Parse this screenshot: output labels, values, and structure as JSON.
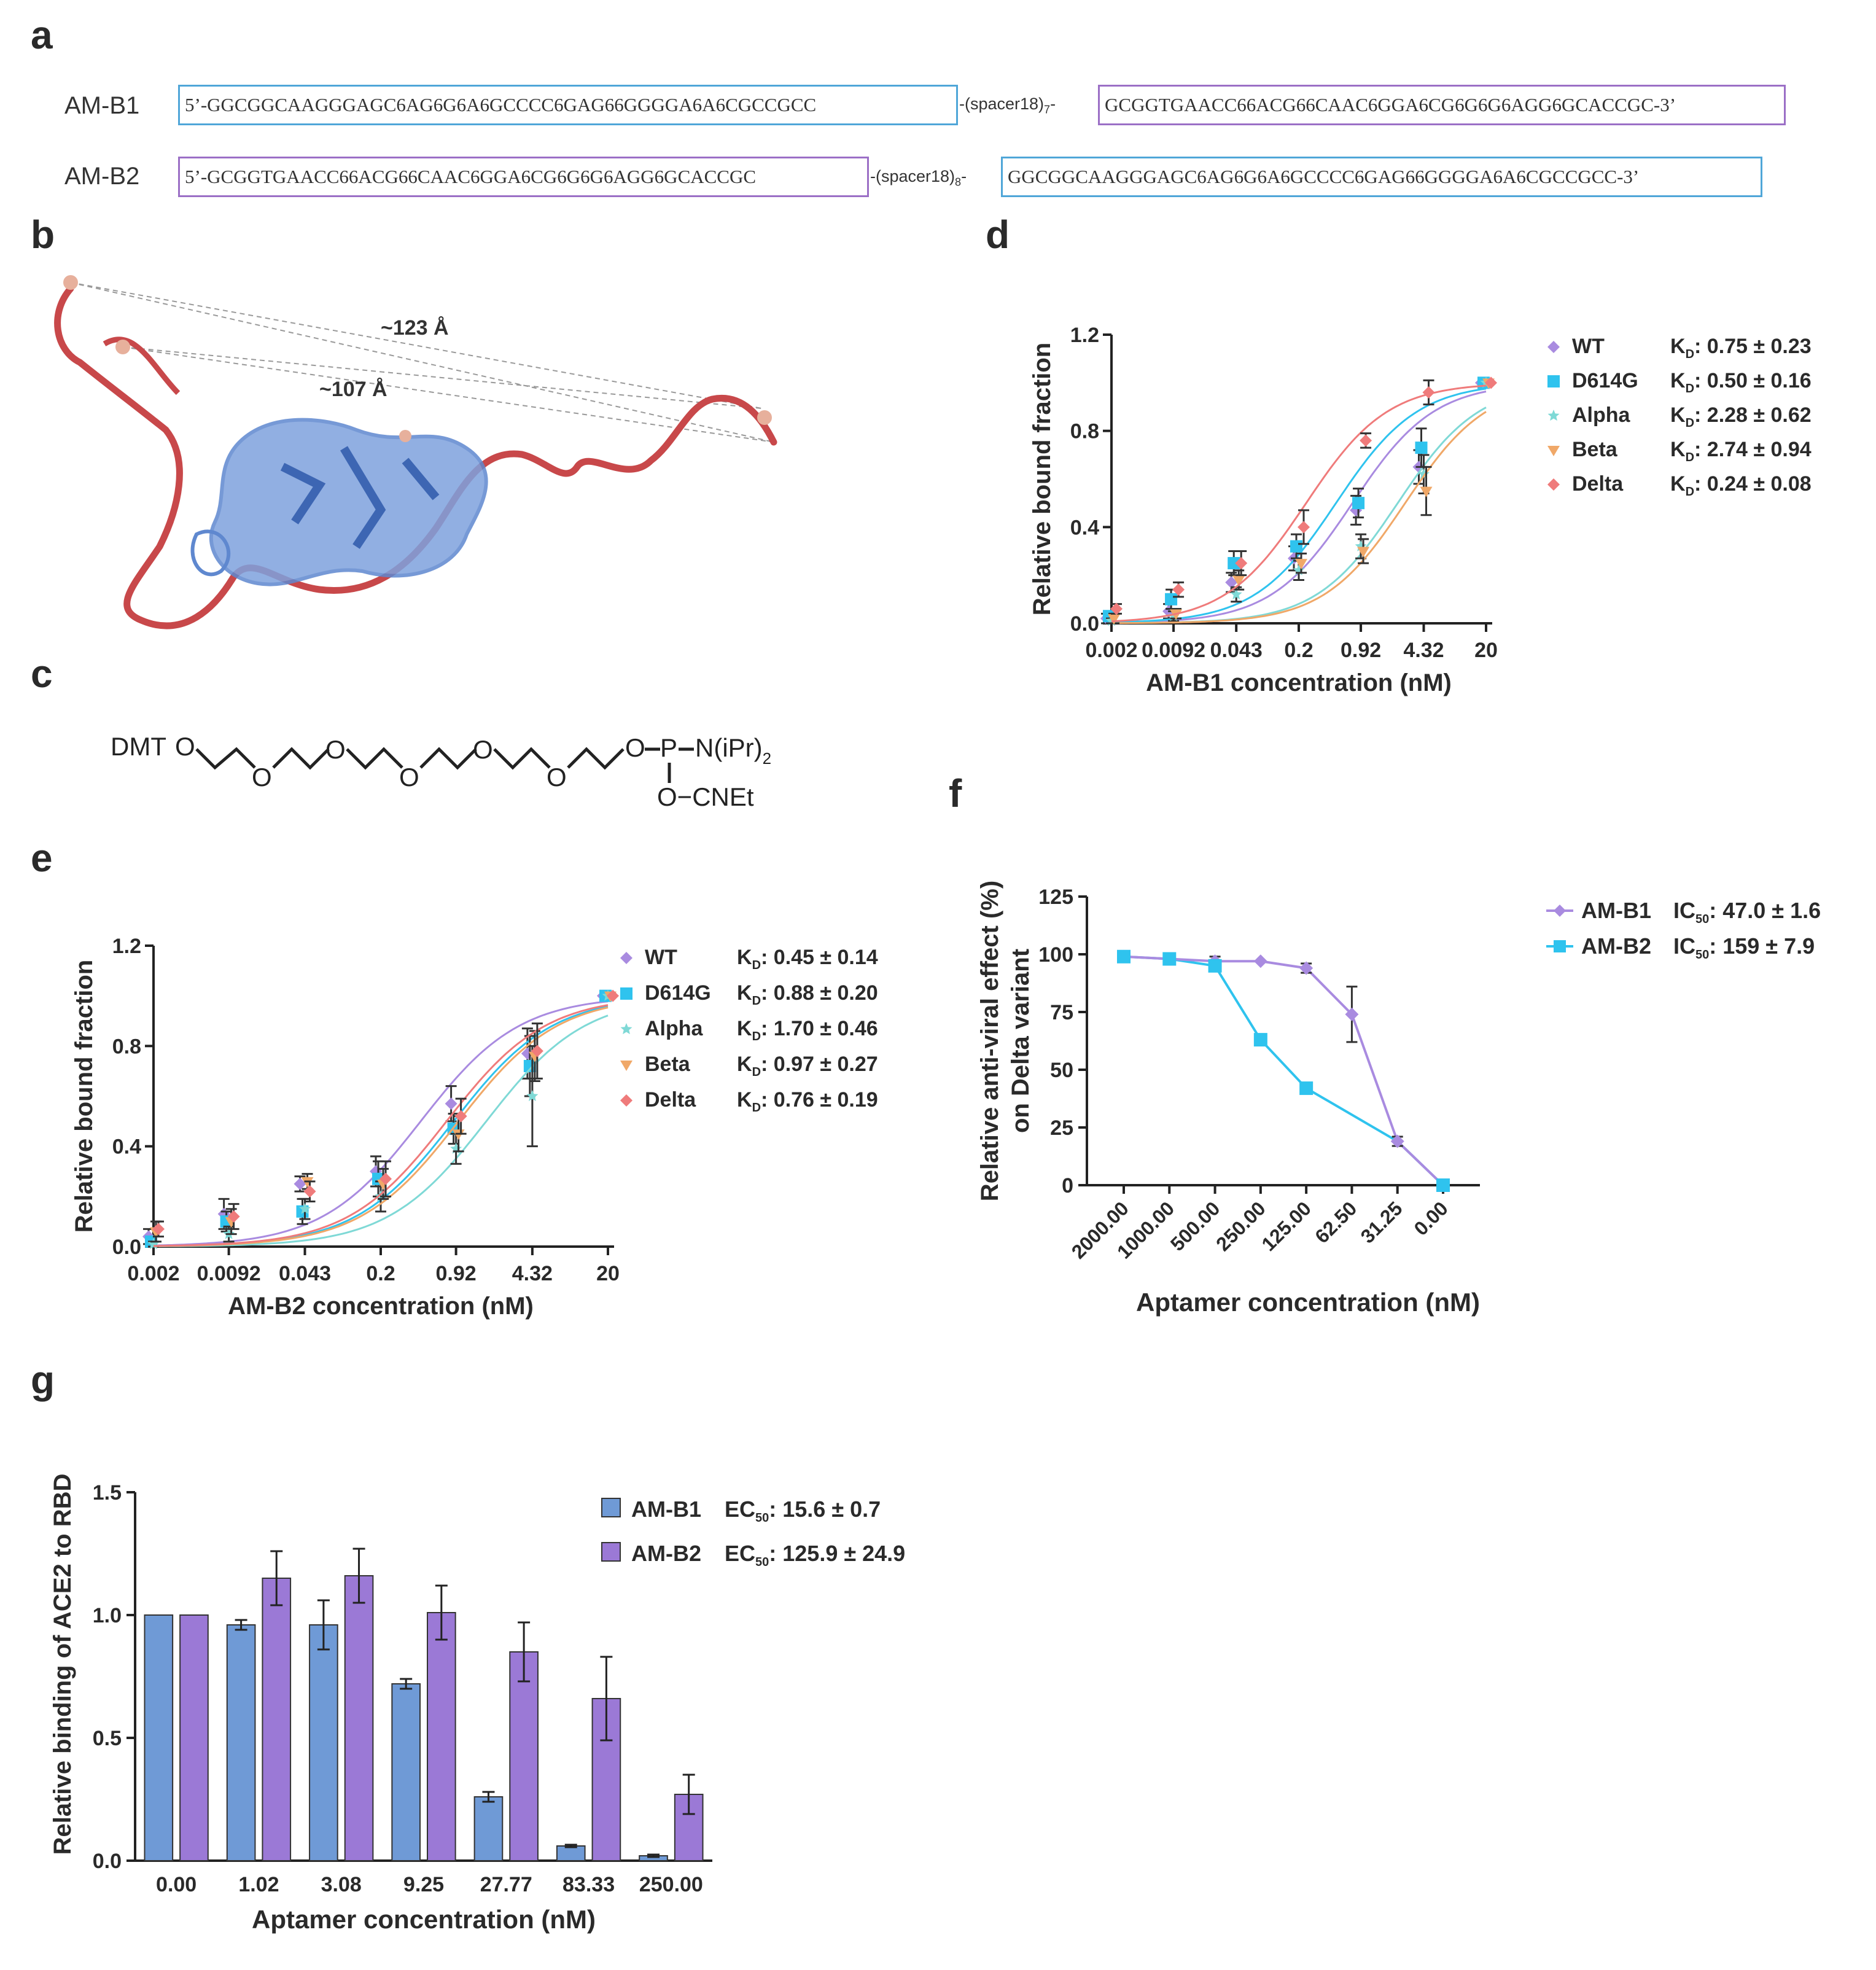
{
  "panels": {
    "a": "a",
    "b": "b",
    "c": "c",
    "d": "d",
    "e": "e",
    "f": "f",
    "g": "g"
  },
  "colors": {
    "wt": "#a98be0",
    "d614g": "#2fc3ee",
    "alpha": "#7fd9d6",
    "beta": "#f0a868",
    "delta": "#ef7b7b",
    "ambr1": "#6f9ad6",
    "ambr2": "#9b79d6",
    "box_blue": "#4fa6d8",
    "box_purple": "#9b6fc6",
    "ribbon_red": "#c8484a",
    "ribbon_blue": "#5f88cf"
  },
  "panel_a": {
    "rows": [
      {
        "name": "AM-B1",
        "seq1": "5’-GGCGGCAAGGGAGC6AG6G6A6GCCCC6GAG66GGGGA6A6CGCCGCC",
        "spacer": "-(spacer18)",
        "spacer_sub": "7",
        "seq2": "GCGGTGAACC66ACG66CAAC6GGA6CG6G6G6AGG6GCACCGC-3’"
      },
      {
        "name": "AM-B2",
        "seq1": "5’-GCGGTGAACC66ACG66CAAC6GGA6CG6G6G6AGG6GCACCGC",
        "spacer": "-(spacer18)",
        "spacer_sub": "8",
        "seq2": "GGCGGCAAGGGAGC6AG6G6A6GCCCC6GAG66GGGGA6A6CGCCGCC-3’"
      }
    ]
  },
  "panel_b": {
    "dist1": "~123 Å",
    "dist2": "~107 Å"
  },
  "panel_c": {
    "dmt": "DMT",
    "o": "O",
    "p": "P",
    "nipr": "N(iPr)",
    "sub2": "2",
    "cnet": "O−CNEt"
  },
  "panel_d": {
    "chart_data": {
      "type": "scatter",
      "xlabel": "AM-B1 concentration (nM)",
      "ylabel": "Relative bound fraction",
      "x_tick_labels": [
        "0.002",
        "0.0092",
        "0.043",
        "0.2",
        "0.92",
        "4.32",
        "20"
      ],
      "x": [
        0.002,
        0.0092,
        0.043,
        0.2,
        0.92,
        4.32,
        20
      ],
      "ylim": [
        0,
        1.2
      ],
      "y_ticks": [
        "0.0",
        "0.4",
        "0.8",
        "1.2"
      ],
      "series": [
        {
          "name": "WT",
          "kd_label": "K",
          "kd_sub": "D",
          "kd_value": ": 0.75 ± 0.23",
          "kd": 0.75,
          "values": [
            0.02,
            0.05,
            0.17,
            0.27,
            0.47,
            0.65,
            1.0
          ],
          "errors": [
            0.02,
            0.03,
            0.04,
            0.05,
            0.06,
            0.07,
            0
          ]
        },
        {
          "name": "D614G",
          "kd_label": "K",
          "kd_sub": "D",
          "kd_value": ": 0.50 ± 0.16",
          "kd": 0.5,
          "values": [
            0.03,
            0.1,
            0.25,
            0.32,
            0.5,
            0.73,
            1.0
          ],
          "errors": [
            0.02,
            0.04,
            0.05,
            0.05,
            0.06,
            0.08,
            0
          ]
        },
        {
          "name": "Alpha",
          "kd_label": "K",
          "kd_sub": "D",
          "kd_value": ": 2.28 ± 0.62",
          "kd": 2.28,
          "values": [
            0.01,
            0.03,
            0.12,
            0.22,
            0.32,
            0.62,
            1.0
          ],
          "errors": [
            0.01,
            0.02,
            0.03,
            0.04,
            0.05,
            0.08,
            0
          ]
        },
        {
          "name": "Beta",
          "kd_label": "K",
          "kd_sub": "D",
          "kd_value": ": 2.74 ± 0.94",
          "kd": 2.74,
          "values": [
            0.02,
            0.04,
            0.18,
            0.25,
            0.3,
            0.55,
            1.0
          ],
          "errors": [
            0.02,
            0.02,
            0.04,
            0.04,
            0.05,
            0.1,
            0
          ]
        },
        {
          "name": "Delta",
          "kd_label": "K",
          "kd_sub": "D",
          "kd_value": ": 0.24 ± 0.08",
          "kd": 0.24,
          "values": [
            0.06,
            0.14,
            0.25,
            0.4,
            0.76,
            0.96,
            1.0
          ],
          "errors": [
            0.02,
            0.03,
            0.05,
            0.07,
            0.03,
            0.05,
            0
          ]
        }
      ]
    }
  },
  "panel_e": {
    "chart_data": {
      "type": "scatter",
      "xlabel": "AM-B2 concentration (nM)",
      "ylabel": "Relative bound fraction",
      "x_tick_labels": [
        "0.002",
        "0.0092",
        "0.043",
        "0.2",
        "0.92",
        "4.32",
        "20"
      ],
      "x": [
        0.002,
        0.0092,
        0.043,
        0.2,
        0.92,
        4.32,
        20
      ],
      "ylim": [
        0,
        1.2
      ],
      "y_ticks": [
        "0.0",
        "0.4",
        "0.8",
        "1.2"
      ],
      "series": [
        {
          "name": "WT",
          "kd_label": "K",
          "kd_sub": "D",
          "kd_value": ": 0.45 ± 0.14",
          "kd": 0.45,
          "values": [
            0.04,
            0.13,
            0.25,
            0.3,
            0.57,
            0.77,
            1.0
          ],
          "errors": [
            0.03,
            0.06,
            0.03,
            0.06,
            0.07,
            0.1,
            0
          ]
        },
        {
          "name": "D614G",
          "kd_label": "K",
          "kd_sub": "D",
          "kd_value": ": 0.88 ± 0.20",
          "kd": 0.88,
          "values": [
            0.02,
            0.1,
            0.14,
            0.27,
            0.47,
            0.72,
            1.0
          ],
          "errors": [
            0.02,
            0.04,
            0.05,
            0.07,
            0.06,
            0.12,
            0
          ]
        },
        {
          "name": "Alpha",
          "kd_label": "K",
          "kd_sub": "D",
          "kd_value": ": 1.70 ± 0.46",
          "kd": 1.7,
          "values": [
            0.01,
            0.05,
            0.15,
            0.2,
            0.39,
            0.6,
            1.0
          ],
          "errors": [
            0.01,
            0.03,
            0.04,
            0.06,
            0.06,
            0.2,
            0
          ]
        },
        {
          "name": "Beta",
          "kd_label": "K",
          "kd_sub": "D",
          "kd_value": ": 0.97 ± 0.27",
          "kd": 0.97,
          "values": [
            0.06,
            0.1,
            0.26,
            0.25,
            0.45,
            0.76,
            1.0
          ],
          "errors": [
            0.04,
            0.05,
            0.03,
            0.06,
            0.07,
            0.1,
            0
          ]
        },
        {
          "name": "Delta",
          "kd_label": "K",
          "kd_sub": "D",
          "kd_value": ": 0.76 ± 0.19",
          "kd": 0.76,
          "values": [
            0.07,
            0.12,
            0.22,
            0.27,
            0.52,
            0.78,
            1.0
          ],
          "errors": [
            0.03,
            0.05,
            0.04,
            0.07,
            0.07,
            0.11,
            0
          ]
        }
      ]
    }
  },
  "panel_f": {
    "chart_data": {
      "type": "line",
      "xlabel": "Aptamer concentration (nM)",
      "ylabel_line1": "Relative anti-viral effect (%)",
      "ylabel_line2": "on Delta variant",
      "categories": [
        "2000.00",
        "1000.00",
        "500.00",
        "250.00",
        "125.00",
        "62.50",
        "31.25",
        "0.00"
      ],
      "ylim": [
        0,
        125
      ],
      "y_ticks": [
        "0",
        "25",
        "50",
        "75",
        "100",
        "125"
      ],
      "series": [
        {
          "name": "AM-B1",
          "ic_label": "IC",
          "ic_sub": "50",
          "ic_value": ": 47.0 ± 1.6",
          "values": [
            99,
            98,
            97,
            97,
            94,
            74,
            19,
            0
          ],
          "errors": [
            1,
            1,
            2,
            1,
            2,
            12,
            2,
            0
          ]
        },
        {
          "name": "AM-B2",
          "ic_label": "IC",
          "ic_sub": "50",
          "ic_value": ": 159 ± 7.9",
          "values": [
            99,
            98,
            95,
            63,
            42,
            null,
            null,
            0
          ],
          "errors": [
            1,
            1,
            1,
            1,
            1,
            0,
            0,
            0
          ]
        }
      ],
      "ambr2_line_points": [
        [
          0,
          99
        ],
        [
          1,
          98
        ],
        [
          2,
          95
        ],
        [
          3,
          63
        ],
        [
          4,
          42
        ],
        [
          6,
          19
        ],
        [
          7,
          0
        ]
      ]
    }
  },
  "panel_g": {
    "chart_data": {
      "type": "bar",
      "xlabel": "Aptamer concentration (nM)",
      "ylabel": "Relative binding of ACE2 to RBD",
      "categories": [
        "0.00",
        "1.02",
        "3.08",
        "9.25",
        "27.77",
        "83.33",
        "250.00"
      ],
      "ylim": [
        0,
        1.5
      ],
      "y_ticks": [
        "0.0",
        "0.5",
        "1.0",
        "1.5"
      ],
      "series": [
        {
          "name": "AM-B1",
          "ec_label": "EC",
          "ec_sub": "50",
          "ec_value": ": 15.6 ± 0.7",
          "values": [
            1.0,
            0.96,
            0.96,
            0.72,
            0.26,
            0.06,
            0.02
          ],
          "errors": [
            0,
            0.02,
            0.1,
            0.02,
            0.02,
            0.005,
            0.005
          ]
        },
        {
          "name": "AM-B2",
          "ec_label": "EC",
          "ec_sub": "50",
          "ec_value": ": 125.9 ± 24.9",
          "values": [
            1.0,
            1.15,
            1.16,
            1.01,
            0.85,
            0.66,
            0.27
          ],
          "errors": [
            0,
            0.11,
            0.11,
            0.11,
            0.12,
            0.17,
            0.08
          ]
        }
      ]
    }
  }
}
